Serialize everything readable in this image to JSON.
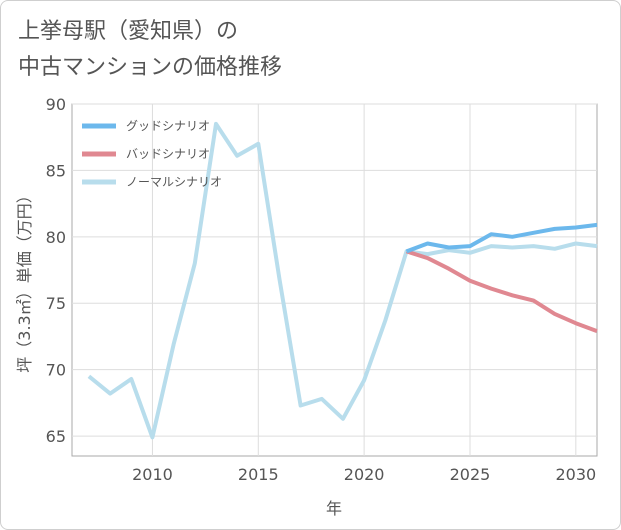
{
  "title_line1": "上挙母駅（愛知県）の",
  "title_line2": "中古マンションの価格推移",
  "chart_data": {
    "type": "line",
    "xlabel": "年",
    "ylabel": "坪（3.3㎡）単価（万円）",
    "xlim": [
      2006.2,
      2031
    ],
    "ylim": [
      63.5,
      90
    ],
    "xticks": [
      2010,
      2015,
      2020,
      2025,
      2030
    ],
    "yticks": [
      65,
      70,
      75,
      80,
      85,
      90
    ],
    "grid": true,
    "legend_position": "top-left",
    "series": [
      {
        "name": "グッドシナリオ",
        "color": "#6cb8ec",
        "x": [
          2022,
          2023,
          2024,
          2025,
          2026,
          2027,
          2028,
          2029,
          2030,
          2031
        ],
        "y": [
          78.9,
          79.5,
          79.2,
          79.3,
          80.2,
          80.0,
          80.3,
          80.6,
          80.7,
          80.9
        ]
      },
      {
        "name": "バッドシナリオ",
        "color": "#e08891",
        "x": [
          2022,
          2023,
          2024,
          2025,
          2026,
          2027,
          2028,
          2029,
          2030,
          2031
        ],
        "y": [
          78.9,
          78.4,
          77.6,
          76.7,
          76.1,
          75.6,
          75.2,
          74.2,
          73.5,
          72.9
        ]
      },
      {
        "name": "ノーマルシナリオ",
        "color": "#b8ddec",
        "x": [
          2007,
          2008,
          2009,
          2010,
          2011,
          2012,
          2013,
          2014,
          2015,
          2016,
          2017,
          2018,
          2019,
          2020,
          2021,
          2022,
          2023,
          2024,
          2025,
          2026,
          2027,
          2028,
          2029,
          2030,
          2031
        ],
        "y": [
          69.5,
          68.2,
          69.3,
          64.9,
          71.9,
          78.0,
          88.5,
          86.1,
          87.0,
          76.8,
          67.3,
          67.8,
          66.3,
          69.2,
          73.7,
          78.9,
          78.7,
          79.0,
          78.8,
          79.3,
          79.2,
          79.3,
          79.1,
          79.5,
          79.3
        ]
      }
    ]
  }
}
